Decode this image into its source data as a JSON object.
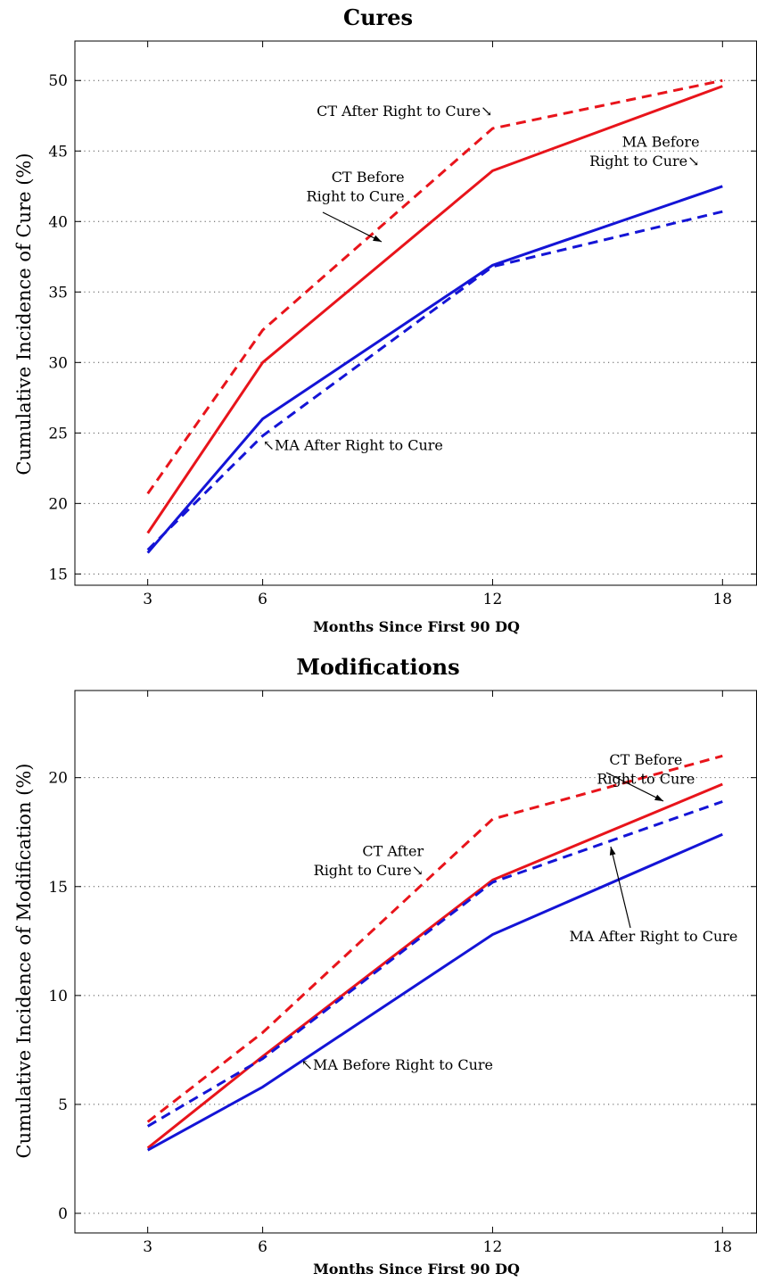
{
  "chart_data": [
    {
      "type": "line",
      "title": "Cures",
      "xlabel": "Months Since First 90 DQ",
      "ylabel": "Cumulative Incidence of Cure (%)",
      "x": [
        3,
        6,
        12,
        18
      ],
      "xlim": [
        1.1,
        18.9
      ],
      "ylim": [
        14.2,
        52.8
      ],
      "yticks": [
        15,
        20,
        25,
        30,
        35,
        40,
        45,
        50
      ],
      "grid": true,
      "series": [
        {
          "name": "CT Before Right to Cure",
          "color": "#e8141b",
          "dash": false,
          "values": [
            17.9,
            30.0,
            43.6,
            49.6
          ]
        },
        {
          "name": "CT After Right to Cure",
          "color": "#e8141b",
          "dash": true,
          "values": [
            20.7,
            32.3,
            46.6,
            50.0
          ]
        },
        {
          "name": "MA Before Right to Cure",
          "color": "#1414d6",
          "dash": false,
          "values": [
            16.5,
            26.0,
            36.9,
            42.5
          ]
        },
        {
          "name": "MA After Right to Cure",
          "color": "#1414d6",
          "dash": true,
          "values": [
            16.7,
            24.8,
            36.8,
            40.7
          ]
        }
      ],
      "annotations": [
        {
          "lines": [
            "CT After Right to Cure↘"
          ],
          "x": 12,
          "y": 47.5,
          "anchor": "end"
        },
        {
          "lines": [
            "CT Before",
            "Right to Cure"
          ],
          "x": 9.7,
          "y": 42.8,
          "anchor": "end"
        },
        {
          "lines": [
            "MA Before",
            "Right to Cure↘"
          ],
          "x": 17.4,
          "y": 45.3,
          "anchor": "end"
        },
        {
          "lines": [
            "↖MA After Right to Cure"
          ],
          "x": 6,
          "y": 23.8,
          "anchor": "start"
        }
      ]
    },
    {
      "type": "line",
      "title": "Modifications",
      "xlabel": "Months Since First 90 DQ",
      "ylabel": "Cumulative Incidence of Modification (%)",
      "x": [
        3,
        6,
        12,
        18
      ],
      "xlim": [
        1.1,
        18.9
      ],
      "ylim": [
        -0.9,
        24.0
      ],
      "yticks": [
        0,
        5,
        10,
        15,
        20
      ],
      "grid": true,
      "series": [
        {
          "name": "CT Before Right to Cure",
          "color": "#e8141b",
          "dash": false,
          "values": [
            3.0,
            7.2,
            15.3,
            19.7
          ]
        },
        {
          "name": "CT After Right to Cure",
          "color": "#e8141b",
          "dash": true,
          "values": [
            4.2,
            8.3,
            18.1,
            21.0
          ]
        },
        {
          "name": "MA Before Right to Cure",
          "color": "#1414d6",
          "dash": false,
          "values": [
            2.9,
            5.8,
            12.8,
            17.4
          ]
        },
        {
          "name": "MA After Right to Cure",
          "color": "#1414d6",
          "dash": true,
          "values": [
            4.0,
            7.1,
            15.2,
            18.9
          ]
        }
      ],
      "annotations": [
        {
          "lines": [
            "CT Before",
            "Right to Cure"
          ],
          "x": 16.0,
          "y": 20.6,
          "anchor": "middle"
        },
        {
          "lines": [
            "CT After",
            "Right to Cure↘"
          ],
          "x": 10.2,
          "y": 16.4,
          "anchor": "end"
        },
        {
          "lines": [
            "MA After Right to Cure"
          ],
          "x": 16.2,
          "y": 12.5,
          "anchor": "middle"
        },
        {
          "lines": [
            "↖MA Before Right to Cure"
          ],
          "x": 7.0,
          "y": 6.6,
          "anchor": "start"
        }
      ]
    }
  ]
}
